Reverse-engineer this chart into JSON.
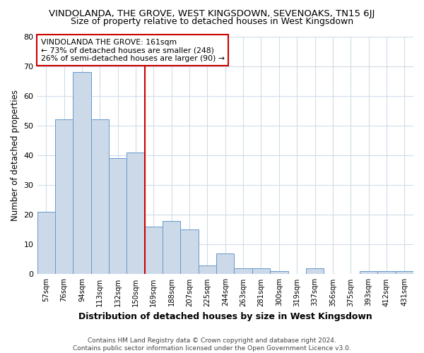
{
  "title": "VINDOLANDA, THE GROVE, WEST KINGSDOWN, SEVENOAKS, TN15 6JJ",
  "subtitle": "Size of property relative to detached houses in West Kingsdown",
  "xlabel": "Distribution of detached houses by size in West Kingsdown",
  "ylabel": "Number of detached properties",
  "categories": [
    "57sqm",
    "76sqm",
    "94sqm",
    "113sqm",
    "132sqm",
    "150sqm",
    "169sqm",
    "188sqm",
    "207sqm",
    "225sqm",
    "244sqm",
    "263sqm",
    "281sqm",
    "300sqm",
    "319sqm",
    "337sqm",
    "356sqm",
    "375sqm",
    "393sqm",
    "412sqm",
    "431sqm"
  ],
  "values": [
    21,
    52,
    68,
    52,
    39,
    41,
    16,
    18,
    15,
    3,
    7,
    2,
    2,
    1,
    0,
    2,
    0,
    0,
    1,
    1,
    1
  ],
  "bar_color": "#ccd9e8",
  "bar_edge_color": "#6699cc",
  "vline_color": "#cc0000",
  "vline_x_index": 6,
  "annotation_line1": "VINDOLANDA THE GROVE: 161sqm",
  "annotation_line2": "← 73% of detached houses are smaller (248)",
  "annotation_line3": "26% of semi-detached houses are larger (90) →",
  "annotation_box_color": "white",
  "annotation_box_edge": "#cc0000",
  "ylim": [
    0,
    80
  ],
  "yticks": [
    0,
    10,
    20,
    30,
    40,
    50,
    60,
    70,
    80
  ],
  "bg_color": "#ffffff",
  "grid_color": "#d0dce8",
  "title_fontsize": 9.5,
  "subtitle_fontsize": 9,
  "footer": "Contains HM Land Registry data © Crown copyright and database right 2024.\nContains public sector information licensed under the Open Government Licence v3.0."
}
